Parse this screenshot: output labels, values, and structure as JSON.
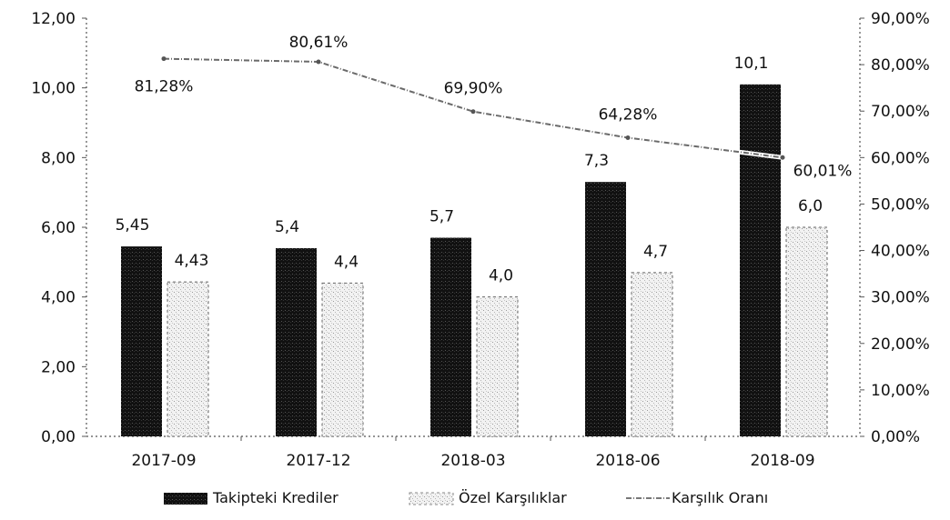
{
  "chart_data": {
    "type": "bar",
    "categories": [
      "2017-09",
      "2017-12",
      "2018-03",
      "2018-06",
      "2018-09"
    ],
    "series": [
      {
        "name": "Takipteki Krediler",
        "kind": "bar",
        "axis": "left",
        "values": [
          5.45,
          5.4,
          5.7,
          7.3,
          10.1
        ],
        "labels": [
          "5,45",
          "5,4",
          "5,7",
          "7,3",
          "10,1"
        ],
        "color": "#111111"
      },
      {
        "name": "Özel Karşılıklar",
        "kind": "bar",
        "axis": "left",
        "values": [
          4.43,
          4.4,
          4.0,
          4.7,
          6.0
        ],
        "labels": [
          "4,43",
          "4,4",
          "4,0",
          "4,7",
          "6,0"
        ],
        "color": "#e4e4e4"
      },
      {
        "name": "Karşılık Oranı",
        "kind": "line",
        "axis": "right",
        "values": [
          81.28,
          80.61,
          69.9,
          64.28,
          60.01
        ],
        "labels": [
          "81,28%",
          "80,61%",
          "69,90%",
          "64,28%",
          "60,01%"
        ],
        "color": "#777777"
      }
    ],
    "y_left": {
      "min": 0,
      "max": 12,
      "step": 2,
      "tick_labels": [
        "0,00",
        "2,00",
        "4,00",
        "6,00",
        "8,00",
        "10,00",
        "12,00"
      ]
    },
    "y_right": {
      "min": 0,
      "max": 90,
      "step": 10,
      "tick_labels": [
        "0,00%",
        "10,00%",
        "20,00%",
        "30,00%",
        "40,00%",
        "50,00%",
        "60,00%",
        "70,00%",
        "80,00%",
        "90,00%"
      ]
    },
    "grid": false,
    "legend_position": "bottom"
  }
}
